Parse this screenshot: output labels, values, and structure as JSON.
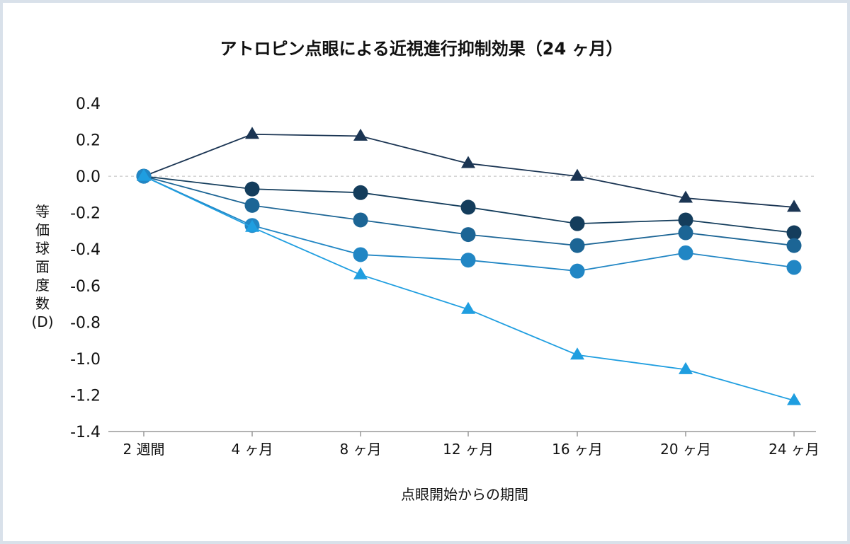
{
  "chart_data": {
    "type": "line",
    "title": "アトロピン点眼による近視進行抑制効果（24 ヶ月）",
    "xlabel": "点眼開始からの期間",
    "ylabel": [
      "等",
      "価",
      "球",
      "面",
      "度",
      "数",
      "(D)"
    ],
    "categories": [
      "2 週間",
      "4 ヶ月",
      "8 ヶ月",
      "12 ヶ月",
      "16 ヶ月",
      "20 ヶ月",
      "24 ヶ月"
    ],
    "ylim": [
      -1.4,
      0.4
    ],
    "yticks": [
      "0.4",
      "0.2",
      "0.0",
      "-0.2",
      "-0.4",
      "-0.6",
      "-0.8",
      "-1.0",
      "-1.2",
      "-1.4"
    ],
    "ytick_values": [
      0.4,
      0.2,
      0.0,
      -0.2,
      -0.4,
      -0.6,
      -0.8,
      -1.0,
      -1.2,
      -1.4
    ],
    "grid": false,
    "zero_line": "dashed",
    "legend": "none",
    "series": [
      {
        "marker": "triangle",
        "color": "#1b3553",
        "values": [
          0.0,
          0.23,
          0.22,
          0.07,
          0.0,
          -0.12,
          -0.17
        ]
      },
      {
        "marker": "circle",
        "color": "#143d5c",
        "values": [
          0.0,
          -0.07,
          -0.09,
          -0.17,
          -0.26,
          -0.24,
          -0.31
        ]
      },
      {
        "marker": "circle",
        "color": "#1c6595",
        "values": [
          0.0,
          -0.16,
          -0.24,
          -0.32,
          -0.38,
          -0.31,
          -0.38
        ]
      },
      {
        "marker": "circle",
        "color": "#2186c4",
        "values": [
          0.0,
          -0.27,
          -0.43,
          -0.46,
          -0.52,
          -0.42,
          -0.5
        ]
      },
      {
        "marker": "triangle",
        "color": "#1f9ee0",
        "values": [
          0.0,
          -0.28,
          -0.54,
          -0.73,
          -0.98,
          -1.06,
          -1.23
        ]
      }
    ]
  }
}
